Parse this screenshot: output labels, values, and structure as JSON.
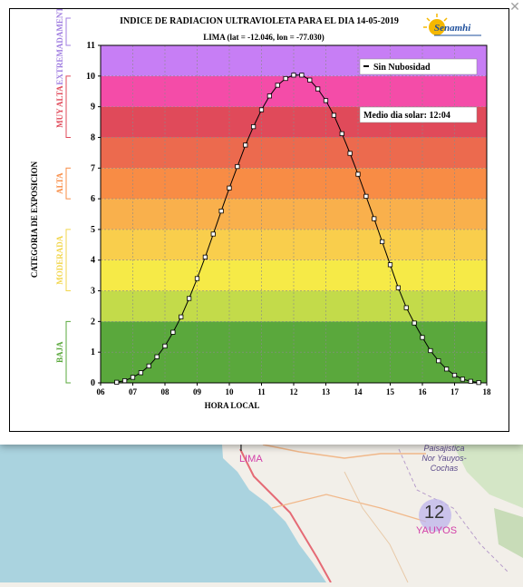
{
  "popup": {
    "close_glyph": "✕"
  },
  "chart_data": {
    "type": "line",
    "title": "INDICE DE RADIACION ULTRAVIOLETA PARA EL DIA 14-05-2019",
    "subtitle": "LIMA (lat = -12.046, lon = -77.030)",
    "xlabel": "HORA LOCAL",
    "ylabel": "CATEGORIA DE EXPOSICION",
    "xlim": [
      6,
      18
    ],
    "ylim": [
      0,
      11
    ],
    "x_ticks": [
      "06",
      "07",
      "08",
      "09",
      "10",
      "11",
      "12",
      "13",
      "14",
      "15",
      "16",
      "17",
      "18"
    ],
    "y_ticks": [
      "0",
      "1",
      "2",
      "3",
      "4",
      "5",
      "6",
      "7",
      "8",
      "9",
      "10",
      "11"
    ],
    "legend": "Sin Nubosidad",
    "legend_placement": "top-right",
    "annotation": "Medio dia solar: 12:04",
    "logo_text": "Senamhi",
    "grid": true,
    "bands": [
      {
        "from": 0,
        "to": 2,
        "color": "#5aa83c"
      },
      {
        "from": 2,
        "to": 3,
        "color": "#c3db4a"
      },
      {
        "from": 3,
        "to": 4,
        "color": "#f6ea47"
      },
      {
        "from": 4,
        "to": 5,
        "color": "#f9ce4c"
      },
      {
        "from": 5,
        "to": 6,
        "color": "#f9b04c"
      },
      {
        "from": 6,
        "to": 7,
        "color": "#f88c45"
      },
      {
        "from": 7,
        "to": 8,
        "color": "#ec6a4e"
      },
      {
        "from": 8,
        "to": 9,
        "color": "#e04a5a"
      },
      {
        "from": 9,
        "to": 10,
        "color": "#f44ca8"
      },
      {
        "from": 10,
        "to": 11,
        "color": "#c77ef5"
      }
    ],
    "categories": [
      {
        "label": "BAJA",
        "from": 0,
        "to": 2,
        "color": "#5aa83c"
      },
      {
        "label": "MODERADA",
        "from": 3,
        "to": 5,
        "color": "#f2d64c"
      },
      {
        "label": "ALTA",
        "from": 6,
        "to": 7,
        "color": "#f88c45"
      },
      {
        "label": "MUY ALTA",
        "from": 8,
        "to": 10,
        "color": "#e04a5a"
      },
      {
        "label": "EXTREMADAMENTE ALTA",
        "from": 11,
        "to": 12,
        "color": "#a07ee0"
      }
    ],
    "series": [
      {
        "name": "Sin Nubosidad",
        "x": [
          6.5,
          6.75,
          7.0,
          7.25,
          7.5,
          7.75,
          8.0,
          8.25,
          8.5,
          8.75,
          9.0,
          9.25,
          9.5,
          9.75,
          10.0,
          10.25,
          10.5,
          10.75,
          11.0,
          11.25,
          11.5,
          11.75,
          12.0,
          12.25,
          12.5,
          12.75,
          13.0,
          13.25,
          13.5,
          13.75,
          14.0,
          14.25,
          14.5,
          14.75,
          15.0,
          15.25,
          15.5,
          15.75,
          16.0,
          16.25,
          16.5,
          16.75,
          17.0,
          17.25,
          17.5,
          17.75
        ],
        "y": [
          0.02,
          0.07,
          0.18,
          0.33,
          0.55,
          0.85,
          1.2,
          1.65,
          2.15,
          2.75,
          3.4,
          4.1,
          4.85,
          5.6,
          6.35,
          7.05,
          7.75,
          8.35,
          8.9,
          9.35,
          9.7,
          9.92,
          10.03,
          10.03,
          9.87,
          9.58,
          9.2,
          8.72,
          8.12,
          7.48,
          6.8,
          6.08,
          5.35,
          4.6,
          3.85,
          3.1,
          2.45,
          1.95,
          1.48,
          1.05,
          0.72,
          0.45,
          0.25,
          0.12,
          0.05,
          0.01
        ]
      }
    ]
  },
  "map": {
    "places": [
      {
        "name": "LIMA",
        "color": "#d23fa8"
      },
      {
        "name": "YAUYOS",
        "color": "#d23fa8",
        "value": "12"
      },
      {
        "name": "Paisajistica\nNor Yauyos-\nCochas",
        "color": "#5b4a8a"
      }
    ],
    "partial_label": "I"
  }
}
